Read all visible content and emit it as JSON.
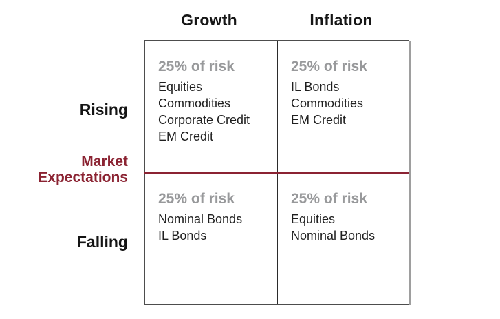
{
  "colors": {
    "maroon": "#8B2333",
    "risk_gray": "#98999b",
    "text_black": "#1f1f1f",
    "box_border": "#4d4d4d"
  },
  "column_headers": {
    "growth": "Growth",
    "inflation": "Inflation"
  },
  "row_axis": {
    "rising": "Rising",
    "falling": "Falling",
    "axis_line1": "Market",
    "axis_line2": "Expectations"
  },
  "cells": {
    "rising_growth": {
      "risk": "25% of risk",
      "assets": [
        "Equities",
        "Commodities",
        "Corporate Credit",
        "EM Credit"
      ]
    },
    "rising_inflation": {
      "risk": "25% of risk",
      "assets": [
        "IL Bonds",
        "Commodities",
        "EM Credit"
      ]
    },
    "falling_growth": {
      "risk": "25% of risk",
      "assets": [
        "Nominal Bonds",
        "IL Bonds"
      ]
    },
    "falling_inflation": {
      "risk": "25% of risk",
      "assets": [
        "Equities",
        "Nominal Bonds"
      ]
    }
  }
}
